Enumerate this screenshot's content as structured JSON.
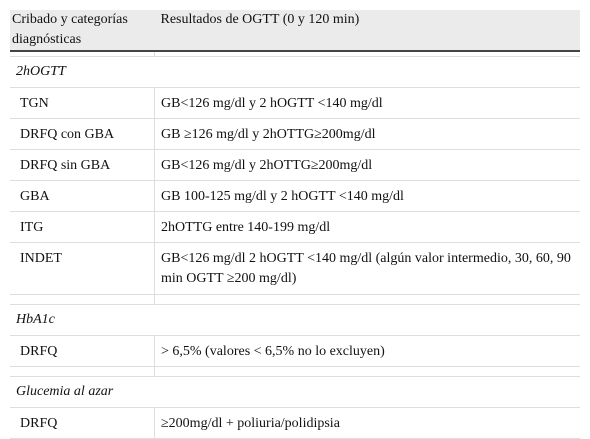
{
  "table": {
    "header": [
      "Cribado y categorías diagnósticas",
      "Resultados de OGTT (0 y 120 min)"
    ],
    "sections": [
      {
        "title": "2hOGTT",
        "rows": [
          [
            "TGN",
            "GB<126 mg/dl y 2 hOGTT <140 mg/dl"
          ],
          [
            "DRFQ con GBA",
            "GB ≥126 mg/dl y 2hOTTG≥200mg/dl"
          ],
          [
            "DRFQ sin GBA",
            "GB<126 mg/dl y 2hOTTG≥200mg/dl"
          ],
          [
            "GBA",
            "GB 100-125 mg/dl y 2 hOGTT <140 mg/dl"
          ],
          [
            "ITG",
            "2hOTTG entre 140-199 mg/dl"
          ],
          [
            "INDET",
            "GB<126 mg/dl 2 hOGTT <140 mg/dl (algún valor intermedio, 30, 60, 90 min OGTT ≥200 mg/dl)"
          ]
        ]
      },
      {
        "title": "HbA1c",
        "rows": [
          [
            "DRFQ",
            "> 6,5% (valores < 6,5% no lo excluyen)"
          ]
        ]
      },
      {
        "title": "Glucemia al azar",
        "rows": [
          [
            "DRFQ",
            "≥200mg/dl + poliuria/polidipsia"
          ]
        ]
      }
    ]
  }
}
